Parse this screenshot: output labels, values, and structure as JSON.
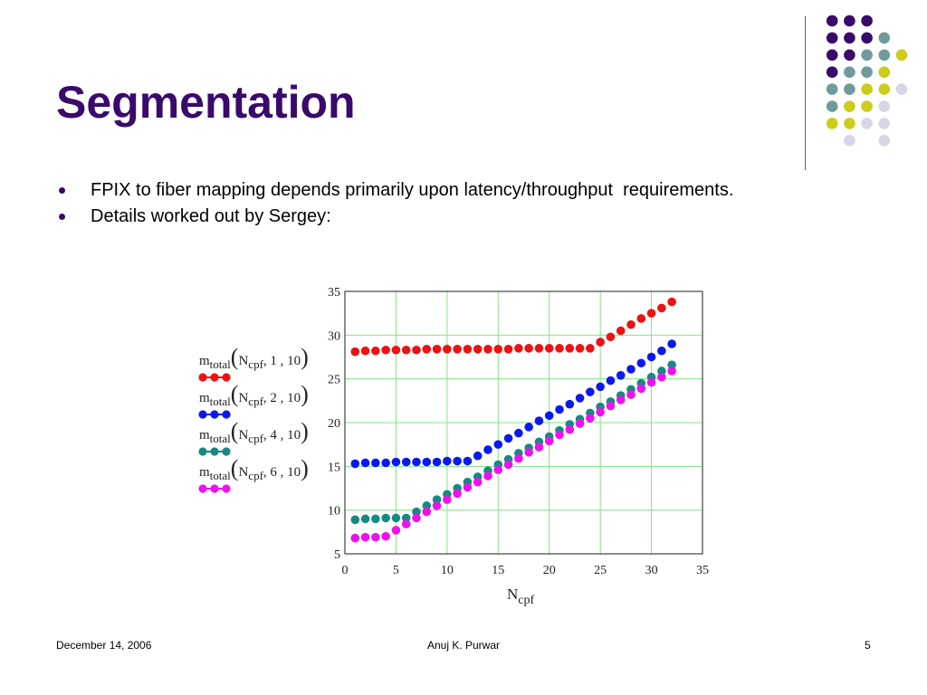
{
  "slide": {
    "title": "Segmentation",
    "bullets": [
      "FPIX to fiber mapping depends primarily upon latency/throughput  requirements.",
      "Details worked out by Sergey:"
    ],
    "footer": {
      "date": "December 14, 2006",
      "author": "Anuj K. Purwar",
      "page": "5"
    }
  },
  "colors": {
    "title": "#3a0a6b",
    "purple": "#3a0a6b",
    "teal": "#6e9b9b",
    "yellow": "#cccc1a",
    "lavender": "#d6d6e8",
    "grid": "#7ee87e"
  },
  "chart_data": {
    "type": "scatter",
    "xlabel_base": "N",
    "xlabel_sub": "cpf",
    "xlim": [
      0,
      35
    ],
    "ylim": [
      5,
      35
    ],
    "xticks": [
      "0",
      "5",
      "10",
      "15",
      "20",
      "25",
      "30",
      "35"
    ],
    "yticks": [
      "5",
      "10",
      "15",
      "20",
      "25",
      "30",
      "35"
    ],
    "grid": true,
    "legend_position": "left",
    "series": [
      {
        "name_main": "m",
        "name_sub": "total",
        "name_arg": "N",
        "name_arg_sub": "cpf",
        "name_params": ", 1 , 10",
        "color": "#ee1111",
        "x": [
          1,
          2,
          3,
          4,
          5,
          6,
          7,
          8,
          9,
          10,
          11,
          12,
          13,
          14,
          15,
          16,
          17,
          18,
          19,
          20,
          21,
          22,
          23,
          24,
          25,
          26,
          27,
          28,
          29,
          30,
          31,
          32
        ],
        "y": [
          28.1,
          28.2,
          28.2,
          28.3,
          28.3,
          28.3,
          28.3,
          28.4,
          28.4,
          28.4,
          28.4,
          28.4,
          28.4,
          28.4,
          28.4,
          28.4,
          28.5,
          28.5,
          28.5,
          28.5,
          28.5,
          28.5,
          28.5,
          28.5,
          29.2,
          29.8,
          30.5,
          31.2,
          31.9,
          32.5,
          33.1,
          33.8
        ]
      },
      {
        "name_main": "m",
        "name_sub": "total",
        "name_arg": "N",
        "name_arg_sub": "cpf",
        "name_params": ", 2 , 10",
        "color": "#0a1aee",
        "x": [
          1,
          2,
          3,
          4,
          5,
          6,
          7,
          8,
          9,
          10,
          11,
          12,
          13,
          14,
          15,
          16,
          17,
          18,
          19,
          20,
          21,
          22,
          23,
          24,
          25,
          26,
          27,
          28,
          29,
          30,
          31,
          32
        ],
        "y": [
          15.3,
          15.4,
          15.4,
          15.4,
          15.5,
          15.5,
          15.5,
          15.5,
          15.5,
          15.6,
          15.6,
          15.6,
          16.2,
          16.9,
          17.5,
          18.2,
          18.8,
          19.5,
          20.2,
          20.8,
          21.5,
          22.1,
          22.8,
          23.5,
          24.1,
          24.8,
          25.4,
          26.1,
          26.8,
          27.5,
          28.2,
          29.0
        ]
      },
      {
        "name_main": "m",
        "name_sub": "total",
        "name_arg": "N",
        "name_arg_sub": "cpf",
        "name_params": ", 4 , 10",
        "color": "#158a84",
        "x": [
          1,
          2,
          3,
          4,
          5,
          6,
          7,
          8,
          9,
          10,
          11,
          12,
          13,
          14,
          15,
          16,
          17,
          18,
          19,
          20,
          21,
          22,
          23,
          24,
          25,
          26,
          27,
          28,
          29,
          30,
          31,
          32
        ],
        "y": [
          8.9,
          9.0,
          9.0,
          9.1,
          9.1,
          9.1,
          9.8,
          10.5,
          11.2,
          11.8,
          12.5,
          13.2,
          13.8,
          14.5,
          15.2,
          15.8,
          16.5,
          17.1,
          17.8,
          18.4,
          19.1,
          19.8,
          20.4,
          21.1,
          21.8,
          22.4,
          23.1,
          23.8,
          24.5,
          25.2,
          25.9,
          26.6
        ]
      },
      {
        "name_main": "m",
        "name_sub": "total",
        "name_arg": "N",
        "name_arg_sub": "cpf",
        "name_params": ", 6 , 10",
        "color": "#ee11ee",
        "x": [
          1,
          2,
          3,
          4,
          5,
          6,
          7,
          8,
          9,
          10,
          11,
          12,
          13,
          14,
          15,
          16,
          17,
          18,
          19,
          20,
          21,
          22,
          23,
          24,
          25,
          26,
          27,
          28,
          29,
          30,
          31,
          32
        ],
        "y": [
          6.8,
          6.9,
          6.9,
          7.0,
          7.7,
          8.4,
          9.1,
          9.8,
          10.5,
          11.2,
          11.9,
          12.6,
          13.2,
          13.9,
          14.6,
          15.2,
          15.9,
          16.6,
          17.2,
          17.9,
          18.6,
          19.2,
          19.9,
          20.5,
          21.2,
          21.9,
          22.6,
          23.2,
          23.9,
          24.6,
          25.2,
          25.9
        ]
      }
    ]
  }
}
